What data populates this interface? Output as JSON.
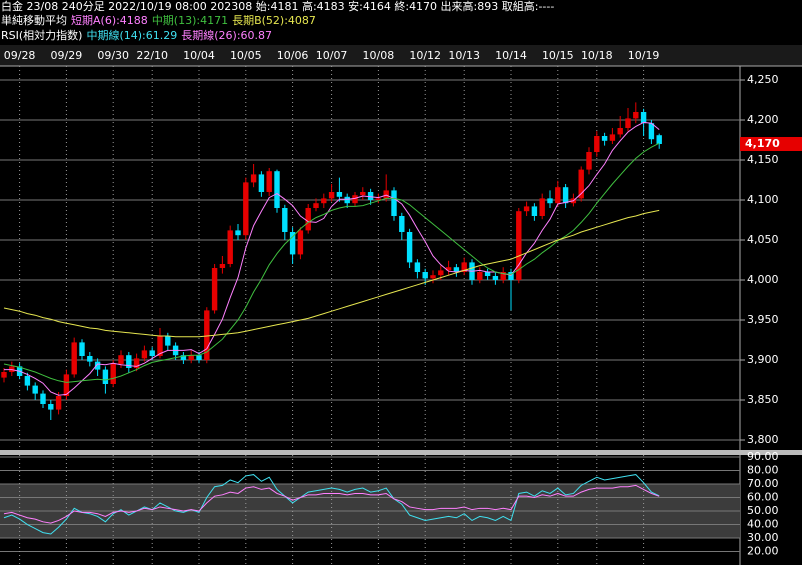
{
  "header": {
    "line1": "白金 23/08 240分足 2022/10/19 08:00 202308 始:4181 高:4183 安:4164 終:4170 出来高:893 取組高:----",
    "ma_title": "単純移動平均",
    "rsi_title": "RSI(相対力指数)"
  },
  "chart_data": {
    "type": "candlestick",
    "categories": [
      null,
      null,
      "09/28",
      null,
      null,
      null,
      null,
      null,
      "09/29",
      null,
      null,
      null,
      null,
      null,
      "09/30",
      null,
      null,
      null,
      null,
      "22/10",
      null,
      null,
      null,
      null,
      null,
      "10/04",
      null,
      null,
      null,
      null,
      null,
      "10/05",
      null,
      null,
      null,
      null,
      null,
      "10/06",
      null,
      null,
      null,
      null,
      "10/07",
      null,
      null,
      null,
      null,
      null,
      "10/08",
      null,
      null,
      null,
      null,
      null,
      "10/12",
      null,
      null,
      null,
      null,
      "10/13",
      null,
      null,
      null,
      null,
      null,
      "10/14",
      null,
      null,
      null,
      null,
      null,
      "10/15",
      null,
      null,
      null,
      null,
      "10/18",
      null,
      null,
      null,
      null,
      null,
      "10/19",
      null,
      null
    ],
    "open": [
      3878,
      3885,
      3892,
      3880,
      3868,
      3858,
      3845,
      3838,
      3855,
      3882,
      3922,
      3905,
      3898,
      3888,
      3870,
      3895,
      3906,
      3890,
      3902,
      3912,
      3905,
      3930,
      3918,
      3906,
      3900,
      3906,
      3900,
      3962,
      4015,
      4020,
      4062,
      4056,
      4122,
      4132,
      4110,
      4136,
      4090,
      4060,
      4032,
      4062,
      4090,
      4096,
      4102,
      4110,
      4104,
      4096,
      4106,
      4110,
      4100,
      4102,
      4112,
      4080,
      4060,
      4022,
      4010,
      4002,
      4006,
      4012,
      4016,
      4010,
      4022,
      4000,
      4010,
      4005,
      4000,
      4010,
      4000,
      4086,
      4092,
      4080,
      4102,
      4096,
      4116,
      4096,
      4102,
      4138,
      4160,
      4180,
      4174,
      4182,
      4190,
      4202,
      4210,
      4196,
      4181
    ],
    "high": [
      3890,
      3898,
      3896,
      3884,
      3872,
      3862,
      3850,
      3860,
      3888,
      3928,
      3926,
      3910,
      3902,
      3892,
      3900,
      3912,
      3910,
      3908,
      3918,
      3916,
      3940,
      3934,
      3922,
      3910,
      3912,
      3910,
      3966,
      4020,
      4030,
      4068,
      4070,
      4128,
      4145,
      4136,
      4140,
      4138,
      4094,
      4066,
      4066,
      4095,
      4102,
      4108,
      4120,
      4128,
      4108,
      4110,
      4116,
      4114,
      4108,
      4132,
      4116,
      4084,
      4064,
      4026,
      4014,
      4012,
      4018,
      4024,
      4020,
      4028,
      4026,
      4016,
      4014,
      4010,
      4016,
      4014,
      4090,
      4098,
      4096,
      4108,
      4112,
      4124,
      4120,
      4108,
      4142,
      4166,
      4186,
      4184,
      4190,
      4205,
      4215,
      4222,
      4214,
      4200,
      4183
    ],
    "low": [
      3872,
      3880,
      3876,
      3862,
      3850,
      3840,
      3825,
      3832,
      3850,
      3878,
      3900,
      3892,
      3880,
      3858,
      3866,
      3890,
      3884,
      3886,
      3898,
      3900,
      3902,
      3912,
      3900,
      3895,
      3896,
      3896,
      3896,
      3958,
      4008,
      4016,
      4050,
      4050,
      4116,
      4104,
      4105,
      4084,
      4050,
      4020,
      4026,
      4058,
      4086,
      4090,
      4098,
      4098,
      4090,
      4092,
      4100,
      4094,
      4096,
      4098,
      4074,
      4050,
      4015,
      4002,
      3994,
      3996,
      4000,
      4006,
      4004,
      4006,
      3994,
      3996,
      4000,
      3994,
      3996,
      3962,
      3996,
      4080,
      4074,
      4076,
      4090,
      4092,
      4090,
      4092,
      4098,
      4132,
      4154,
      4168,
      4170,
      4178,
      4186,
      4196,
      4180,
      4170,
      4164
    ],
    "close": [
      3885,
      3892,
      3880,
      3868,
      3858,
      3845,
      3838,
      3855,
      3882,
      3922,
      3905,
      3898,
      3888,
      3870,
      3895,
      3906,
      3890,
      3902,
      3912,
      3905,
      3930,
      3918,
      3906,
      3900,
      3906,
      3900,
      3962,
      4015,
      4020,
      4062,
      4056,
      4122,
      4132,
      4110,
      4136,
      4090,
      4060,
      4032,
      4062,
      4090,
      4096,
      4102,
      4110,
      4104,
      4096,
      4106,
      4110,
      4100,
      4102,
      4112,
      4080,
      4060,
      4022,
      4010,
      4002,
      4006,
      4012,
      4016,
      4010,
      4022,
      4000,
      4010,
      4005,
      4000,
      4010,
      4000,
      4086,
      4092,
      4080,
      4102,
      4096,
      4116,
      4096,
      4102,
      4138,
      4160,
      4180,
      4174,
      4182,
      4190,
      4202,
      4210,
      4196,
      4176,
      4170
    ],
    "up_color": "#e60000",
    "down_color": "#00e0ff",
    "ylim": [
      3787.5,
      4267.5
    ],
    "yticks": [
      {
        "value": 3800,
        "label": "3,800"
      },
      {
        "value": 3850,
        "label": "3,850"
      },
      {
        "value": 3900,
        "label": "3,900"
      },
      {
        "value": 3950,
        "label": "3,950"
      },
      {
        "value": 4000,
        "label": "4,000"
      },
      {
        "value": 4050,
        "label": "4,050"
      },
      {
        "value": 4100,
        "label": "4,100"
      },
      {
        "value": 4150,
        "label": "4,150"
      },
      {
        "value": 4200,
        "label": "4,200"
      },
      {
        "value": 4250,
        "label": "4,250"
      }
    ],
    "last_label": "4,170",
    "last_color": "#e60000",
    "series": [
      {
        "name": "短期A(6):4188",
        "color": "#ff80ff",
        "values": [
          3888,
          3888,
          3886,
          3882,
          3877,
          3871,
          3860,
          3856,
          3857,
          3865,
          3874,
          3883,
          3895,
          3894,
          3896,
          3894,
          3893,
          3892,
          3896,
          3902,
          3908,
          3912,
          3912,
          3912,
          3913,
          3908,
          3914,
          3932,
          3951,
          3978,
          4003,
          4040,
          4068,
          4086,
          4103,
          4108,
          4101,
          4093,
          4080,
          4073,
          4072,
          4077,
          4092,
          4101,
          4101,
          4102,
          4105,
          4104,
          4103,
          4106,
          4102,
          4095,
          4081,
          4064,
          4048,
          4030,
          4019,
          4011,
          4010,
          4012,
          4011,
          4012,
          4010,
          4010,
          4008,
          4006,
          4019,
          4034,
          4046,
          4062,
          4076,
          4095,
          4097,
          4099,
          4108,
          4118,
          4132,
          4145,
          4162,
          4174,
          4185,
          4192,
          4197,
          4196,
          4188
        ]
      },
      {
        "name": "中期(13):4171",
        "color": "#40c040",
        "values": [
          3895,
          3893,
          3891,
          3888,
          3885,
          3881,
          3877,
          3874,
          3872,
          3873,
          3874,
          3875,
          3876,
          3875,
          3877,
          3880,
          3884,
          3888,
          3893,
          3897,
          3899,
          3901,
          3903,
          3905,
          3906,
          3906,
          3910,
          3918,
          3926,
          3938,
          3950,
          3966,
          3985,
          4001,
          4019,
          4033,
          4045,
          4054,
          4064,
          4072,
          4078,
          4082,
          4087,
          4090,
          4092,
          4092,
          4093,
          4096,
          4099,
          4102,
          4102,
          4100,
          4094,
          4086,
          4078,
          4070,
          4062,
          4054,
          4046,
          4038,
          4030,
          4022,
          4015,
          4010,
          4008,
          4007,
          4013,
          4020,
          4026,
          4034,
          4041,
          4049,
          4055,
          4062,
          4072,
          4083,
          4096,
          4108,
          4120,
          4131,
          4142,
          4152,
          4160,
          4166,
          4171
        ]
      },
      {
        "name": "長期B(52):4087",
        "color": "#e6e650",
        "values": [
          3965,
          3963,
          3961,
          3958,
          3956,
          3953,
          3951,
          3948,
          3946,
          3944,
          3942,
          3940,
          3939,
          3937,
          3936,
          3935,
          3934,
          3933,
          3932,
          3931,
          3930,
          3930,
          3929,
          3929,
          3929,
          3929,
          3930,
          3931,
          3932,
          3933,
          3934,
          3936,
          3938,
          3940,
          3942,
          3944,
          3946,
          3948,
          3950,
          3952,
          3955,
          3958,
          3961,
          3964,
          3967,
          3970,
          3973,
          3976,
          3979,
          3982,
          3985,
          3988,
          3991,
          3994,
          3997,
          4000,
          4003,
          4006,
          4009,
          4012,
          4015,
          4018,
          4020,
          4022,
          4024,
          4026,
          4030,
          4034,
          4038,
          4042,
          4046,
          4050,
          4053,
          4056,
          4060,
          4063,
          4066,
          4069,
          4072,
          4075,
          4078,
          4080,
          4083,
          4085,
          4087
        ]
      }
    ],
    "rsi": {
      "ylim": [
        10,
        91.5
      ],
      "yticks": [
        {
          "value": 20,
          "label": "20.00"
        },
        {
          "value": 30,
          "label": "30.00"
        },
        {
          "value": 40,
          "label": "40.00"
        },
        {
          "value": 50,
          "label": "50.00"
        },
        {
          "value": 60,
          "label": "60.00"
        },
        {
          "value": 70,
          "label": "70.00"
        },
        {
          "value": 80,
          "label": "80.00"
        },
        {
          "value": 90,
          "label": "90.00"
        }
      ],
      "band": [
        30,
        70
      ],
      "series": [
        {
          "name": "中期線(14):61.29",
          "color": "#40e0f0",
          "values": [
            45,
            47,
            44,
            40,
            37,
            34,
            33,
            38,
            44,
            52,
            49,
            48,
            46,
            42,
            48,
            51,
            47,
            50,
            53,
            51,
            56,
            53,
            50,
            49,
            51,
            49,
            60,
            68,
            69,
            73,
            71,
            76,
            77,
            72,
            75,
            66,
            61,
            56,
            60,
            64,
            65,
            66,
            67,
            66,
            64,
            66,
            67,
            64,
            65,
            67,
            59,
            55,
            47,
            45,
            43,
            44,
            45,
            46,
            45,
            48,
            43,
            46,
            45,
            43,
            46,
            43,
            63,
            64,
            61,
            65,
            63,
            67,
            62,
            63,
            69,
            72,
            75,
            73,
            74,
            75,
            76,
            77,
            71,
            64,
            61.29
          ]
        },
        {
          "name": "長期線(26):60.87",
          "color": "#ff80ff",
          "values": [
            48,
            49,
            47,
            45,
            44,
            42,
            41,
            43,
            46,
            50,
            49,
            49,
            48,
            46,
            49,
            50,
            49,
            50,
            52,
            51,
            53,
            52,
            51,
            50,
            51,
            50,
            56,
            61,
            62,
            64,
            63,
            67,
            68,
            66,
            67,
            63,
            61,
            58,
            60,
            62,
            62,
            63,
            63,
            63,
            62,
            63,
            63,
            62,
            62,
            63,
            59,
            57,
            53,
            52,
            51,
            51,
            52,
            52,
            52,
            53,
            51,
            52,
            52,
            51,
            52,
            51,
            61,
            61,
            60,
            62,
            61,
            63,
            61,
            61,
            64,
            66,
            67,
            67,
            67,
            68,
            68,
            69,
            66,
            63,
            60.87
          ]
        }
      ]
    }
  }
}
